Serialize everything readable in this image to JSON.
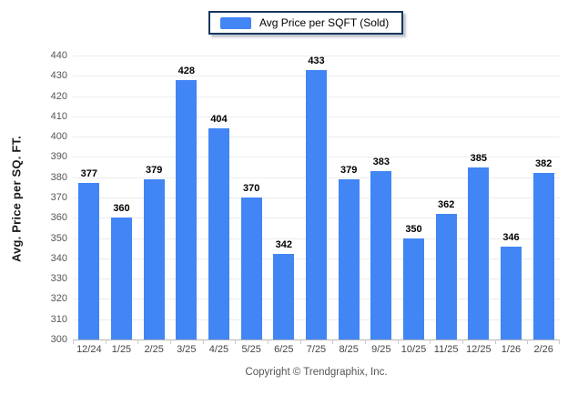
{
  "chart_data": {
    "type": "bar",
    "title": "",
    "legend": "Avg Price per SQFT (Sold)",
    "legend_position": "top-center",
    "categories": [
      "12/24",
      "1/25",
      "2/25",
      "3/25",
      "4/25",
      "5/25",
      "6/25",
      "7/25",
      "8/25",
      "9/25",
      "10/25",
      "11/25",
      "12/25",
      "1/26",
      "2/26"
    ],
    "series": [
      {
        "name": "Avg Price per SQFT (Sold)",
        "values": [
          377,
          360,
          379,
          428,
          404,
          370,
          342,
          433,
          379,
          383,
          350,
          362,
          385,
          346,
          382
        ]
      }
    ],
    "value_labels": true,
    "xlabel": "",
    "ylabel": "Avg. Price per SQ. FT.",
    "ylim": [
      300,
      440
    ],
    "ytick_step": 10,
    "grid": "horizontal",
    "colors": {
      "bar": "#4285F4",
      "legend_border": "#17375E",
      "gridline": "#ececec",
      "axis_line": "#b5b5b5",
      "tick_label": "#555555",
      "value_label": "#000000"
    }
  },
  "footer": {
    "copyright": "Copyright © Trendgraphix, Inc."
  }
}
